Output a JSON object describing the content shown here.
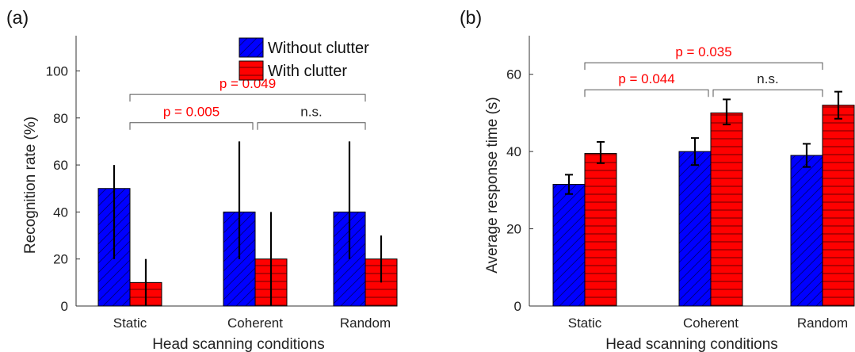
{
  "chart_data": [
    {
      "type": "bar",
      "panel_label": "(a)",
      "categories": [
        "Static",
        "Coherent",
        "Random"
      ],
      "xlabel": "Head scanning conditions",
      "ylabel": "Recognition rate (%)",
      "ylim": [
        0,
        115
      ],
      "yticks": [
        0,
        20,
        40,
        60,
        80,
        100
      ],
      "grid": false,
      "legend": {
        "position": "top-right",
        "entries": [
          "Without clutter",
          "With clutter"
        ]
      },
      "series": [
        {
          "name": "Without clutter",
          "color": "#0000ff",
          "pattern": "diagonal-hatch",
          "values": [
            50,
            40,
            40
          ],
          "err_low": [
            20,
            20,
            20
          ],
          "err_high": [
            60,
            70,
            70
          ]
        },
        {
          "name": "With clutter",
          "color": "#ff0000",
          "pattern": "horizontal-lines",
          "values": [
            10,
            20,
            20
          ],
          "err_low": [
            0,
            0,
            10
          ],
          "err_high": [
            20,
            40,
            30
          ]
        }
      ],
      "annotations": [
        {
          "from": "Static",
          "to": "Coherent",
          "text": "p = 0.005",
          "color": "#ff0000",
          "level": 78
        },
        {
          "from": "Coherent",
          "to": "Random",
          "text": "n.s.",
          "color": "#222222",
          "level": 78
        },
        {
          "from": "Static",
          "to": "Random",
          "text": "p = 0.049",
          "color": "#ff0000",
          "level": 90
        }
      ]
    },
    {
      "type": "bar",
      "panel_label": "(b)",
      "categories": [
        "Static",
        "Coherent",
        "Random"
      ],
      "xlabel": "Head scanning conditions",
      "ylabel": "Average response time (s)",
      "ylim": [
        0,
        70
      ],
      "yticks": [
        0,
        20,
        40,
        60
      ],
      "grid": false,
      "series": [
        {
          "name": "Without clutter",
          "color": "#0000ff",
          "pattern": "diagonal-hatch",
          "values": [
            31.5,
            40,
            39
          ],
          "err_low": [
            29,
            36.5,
            36
          ],
          "err_high": [
            34,
            43.5,
            42
          ]
        },
        {
          "name": "With clutter",
          "color": "#ff0000",
          "pattern": "horizontal-lines",
          "values": [
            39.5,
            50,
            52
          ],
          "err_low": [
            37,
            47,
            48.5
          ],
          "err_high": [
            42.5,
            53.5,
            55.5
          ]
        }
      ],
      "annotations": [
        {
          "from": "Static",
          "to": "Coherent",
          "text": "p = 0.044",
          "color": "#ff0000",
          "level": 56
        },
        {
          "from": "Coherent",
          "to": "Random",
          "text": "n.s.",
          "color": "#222222",
          "level": 56
        },
        {
          "from": "Static",
          "to": "Random",
          "text": "p = 0.035",
          "color": "#ff0000",
          "level": 63
        }
      ]
    }
  ]
}
